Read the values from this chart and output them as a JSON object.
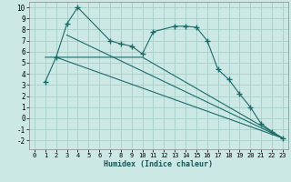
{
  "xlabel": "Humidex (Indice chaleur)",
  "bg_color": "#cce8e4",
  "grid_color": "#a8cec8",
  "line_color": "#1a6b6b",
  "xlim": [
    -0.5,
    23.5
  ],
  "ylim": [
    -2.8,
    10.5
  ],
  "xticks": [
    0,
    1,
    2,
    3,
    4,
    5,
    6,
    7,
    8,
    9,
    10,
    11,
    12,
    13,
    14,
    15,
    16,
    17,
    18,
    19,
    20,
    21,
    22,
    23
  ],
  "yticks": [
    -2,
    -1,
    0,
    1,
    2,
    3,
    4,
    5,
    6,
    7,
    8,
    9,
    10
  ],
  "series": [
    {
      "x": [
        1,
        2,
        3,
        4,
        7,
        8,
        9,
        10,
        11,
        13,
        14,
        15,
        16,
        17,
        18,
        19,
        20,
        21,
        22,
        23
      ],
      "y": [
        3.3,
        5.5,
        8.5,
        10.0,
        7.0,
        6.7,
        6.5,
        5.8,
        7.8,
        8.3,
        8.3,
        8.2,
        7.0,
        4.4,
        3.5,
        2.2,
        1.0,
        -0.5,
        -1.2,
        -1.8
      ],
      "marker": "+",
      "markersize": 4,
      "has_marker": true
    },
    {
      "x": [
        1,
        10,
        23
      ],
      "y": [
        5.5,
        5.5,
        -1.8
      ],
      "marker": null,
      "markersize": 0,
      "has_marker": false
    },
    {
      "x": [
        3,
        23
      ],
      "y": [
        7.5,
        -1.8
      ],
      "marker": null,
      "markersize": 0,
      "has_marker": false
    },
    {
      "x": [
        2,
        23
      ],
      "y": [
        5.5,
        -1.8
      ],
      "marker": null,
      "markersize": 0,
      "has_marker": false
    }
  ]
}
